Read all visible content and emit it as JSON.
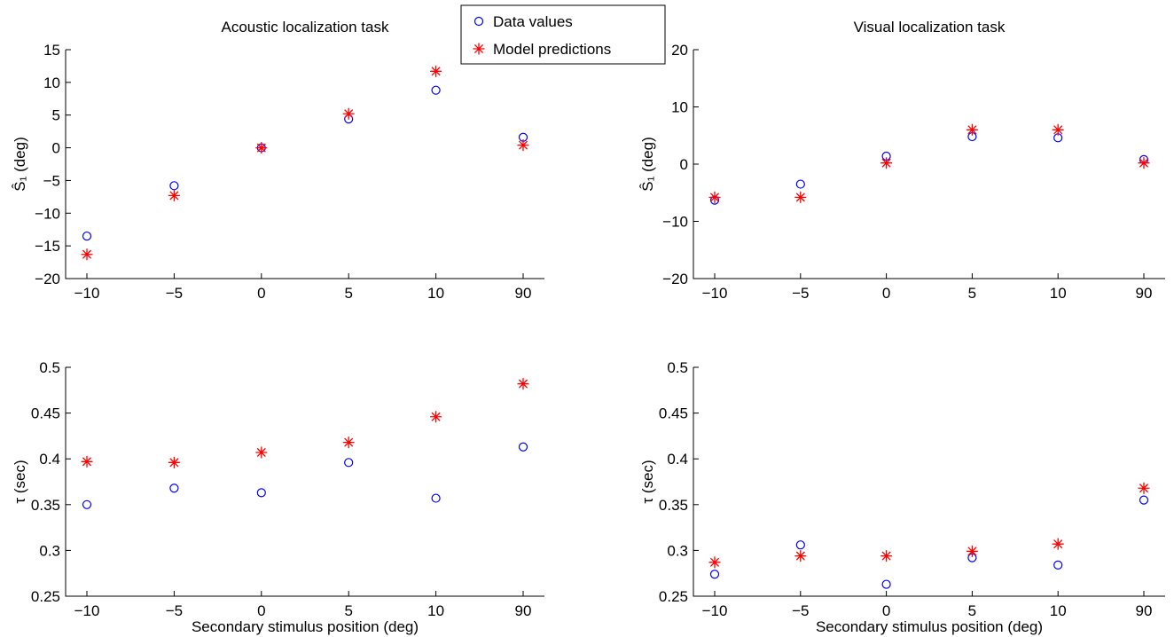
{
  "chart_data": [
    {
      "type": "scatter",
      "title": "Acoustic localization task",
      "ylabel": "Ŝ₁ (deg)",
      "xlabel": "",
      "categories": [
        "−10",
        "−5",
        "0",
        "5",
        "10",
        "90"
      ],
      "ylim": [
        -20,
        15
      ],
      "yticks": [
        -20,
        -15,
        -10,
        -5,
        0,
        5,
        10,
        15
      ],
      "series": [
        {
          "name": "Data values",
          "marker": "circle",
          "color": "#0000ff",
          "values": [
            -13.5,
            -5.8,
            0,
            4.4,
            8.8,
            1.6
          ]
        },
        {
          "name": "Model predictions",
          "marker": "asterisk",
          "color": "#ff0000",
          "values": [
            -16.3,
            -7.3,
            0,
            5.2,
            11.7,
            0.4
          ]
        }
      ]
    },
    {
      "type": "scatter",
      "title": "Visual localization task",
      "ylabel": "Ŝ₁ (deg)",
      "xlabel": "",
      "categories": [
        "−10",
        "−5",
        "0",
        "5",
        "10",
        "90"
      ],
      "ylim": [
        -20,
        20
      ],
      "yticks": [
        -20,
        -10,
        0,
        10,
        20
      ],
      "series": [
        {
          "name": "Data values",
          "marker": "circle",
          "color": "#0000ff",
          "values": [
            -6.3,
            -3.5,
            1.4,
            4.8,
            4.6,
            0.8
          ]
        },
        {
          "name": "Model predictions",
          "marker": "asterisk",
          "color": "#ff0000",
          "values": [
            -5.8,
            -5.8,
            0.2,
            6.0,
            6.0,
            0.2
          ]
        }
      ]
    },
    {
      "type": "scatter",
      "title": "",
      "ylabel": "τ (sec)",
      "xlabel": "Secondary stimulus position (deg)",
      "categories": [
        "−10",
        "−5",
        "0",
        "5",
        "10",
        "90"
      ],
      "ylim": [
        0.25,
        0.5
      ],
      "yticks": [
        0.25,
        0.3,
        0.35,
        0.4,
        0.45,
        0.5
      ],
      "series": [
        {
          "name": "Data values",
          "marker": "circle",
          "color": "#0000ff",
          "values": [
            0.35,
            0.368,
            0.363,
            0.396,
            0.357,
            0.413
          ]
        },
        {
          "name": "Model predictions",
          "marker": "asterisk",
          "color": "#ff0000",
          "values": [
            0.397,
            0.396,
            0.407,
            0.418,
            0.446,
            0.482
          ]
        }
      ]
    },
    {
      "type": "scatter",
      "title": "",
      "ylabel": "τ (sec)",
      "xlabel": "Secondary stimulus position (deg)",
      "categories": [
        "−10",
        "−5",
        "0",
        "5",
        "10",
        "90"
      ],
      "ylim": [
        0.25,
        0.5
      ],
      "yticks": [
        0.25,
        0.3,
        0.35,
        0.4,
        0.45,
        0.5
      ],
      "series": [
        {
          "name": "Data values",
          "marker": "circle",
          "color": "#0000ff",
          "values": [
            0.274,
            0.306,
            0.263,
            0.292,
            0.284,
            0.355
          ]
        },
        {
          "name": "Model predictions",
          "marker": "asterisk",
          "color": "#ff0000",
          "values": [
            0.287,
            0.294,
            0.294,
            0.299,
            0.307,
            0.368
          ]
        }
      ]
    }
  ],
  "legend": {
    "items": [
      {
        "label": "Data values",
        "marker": "circle",
        "color": "#0000ff"
      },
      {
        "label": "Model predictions",
        "marker": "asterisk",
        "color": "#ff0000"
      }
    ]
  }
}
